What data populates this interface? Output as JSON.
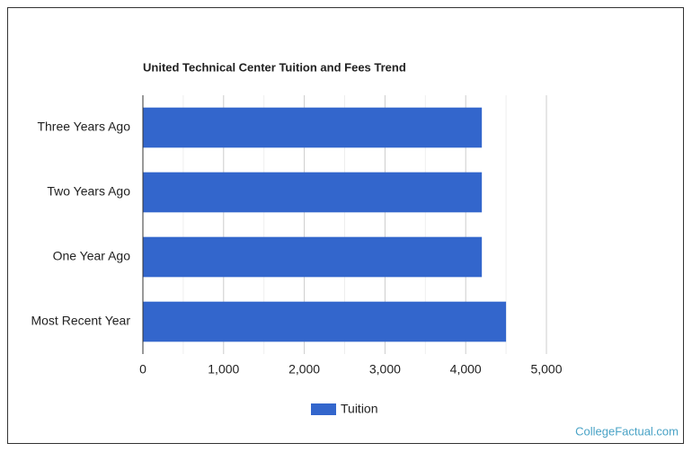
{
  "chart_data": {
    "type": "bar",
    "orientation": "horizontal",
    "title": "United Technical Center Tuition and Fees Trend",
    "categories": [
      "Three Years Ago",
      "Two Years Ago",
      "One Year Ago",
      "Most Recent Year"
    ],
    "series": [
      {
        "name": "Tuition",
        "color": "#3366cc",
        "values": [
          4200,
          4200,
          4200,
          4500
        ]
      }
    ],
    "xlim": [
      0,
      5000
    ],
    "xticks": [
      0,
      {
        "value": 1000,
        "label": "1,000"
      },
      {
        "value": 2000,
        "label": "2,000"
      },
      {
        "value": 3000,
        "label": "3,000"
      },
      {
        "value": 4000,
        "label": "4,000"
      },
      {
        "value": 5000,
        "label": "5,000"
      }
    ],
    "minor_xticks": [
      500,
      1500,
      2500,
      3500,
      4500
    ],
    "grid": true,
    "legend": "bottom",
    "source": "CollegeFactual.com"
  }
}
